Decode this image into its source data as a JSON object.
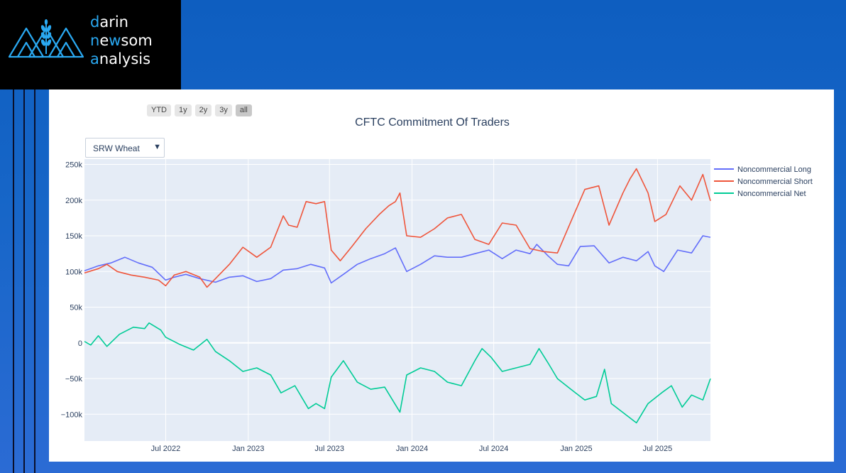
{
  "logo": {
    "line1_first": "d",
    "line1_rest": "arin",
    "line2_first": "n",
    "line2_mid": "e",
    "line2_hl": "w",
    "line2_rest": "som",
    "line3_first": "a",
    "line3_rest": "nalysis"
  },
  "range_buttons": [
    "YTD",
    "1y",
    "2y",
    "3y",
    "all"
  ],
  "active_range": "all",
  "dropdown": {
    "selected": "SRW Wheat"
  },
  "colors": {
    "long": "#636efa",
    "short": "#ef553b",
    "net": "#00cc96",
    "plot_bg": "#e5ecf6",
    "grid": "#ffffff",
    "accent": "#2aa9f2"
  },
  "chart_data": {
    "type": "line",
    "title": "CFTC Commitment Of Traders",
    "xlabel": "",
    "ylabel": "",
    "xlim": [
      "2022-01-01",
      "2025-10-27"
    ],
    "ylim": [
      -137500,
      257500
    ],
    "x_ticks": [
      {
        "label": "Jul 2022",
        "date": "2022-07-01"
      },
      {
        "label": "Jan 2023",
        "date": "2023-01-01"
      },
      {
        "label": "Jul 2023",
        "date": "2023-07-01"
      },
      {
        "label": "Jan 2024",
        "date": "2024-01-01"
      },
      {
        "label": "Jul 2024",
        "date": "2024-07-01"
      },
      {
        "label": "Jan 2025",
        "date": "2025-01-01"
      },
      {
        "label": "Jul 2025",
        "date": "2025-07-01"
      }
    ],
    "y_ticks": [
      {
        "label": "250k",
        "value": 250000
      },
      {
        "label": "200k",
        "value": 200000
      },
      {
        "label": "150k",
        "value": 150000
      },
      {
        "label": "100k",
        "value": 100000
      },
      {
        "label": "50k",
        "value": 50000
      },
      {
        "label": "0",
        "value": 0
      },
      {
        "label": "−50k",
        "value": -50000
      },
      {
        "label": "−100k",
        "value": -100000
      }
    ],
    "grid": true,
    "legend_position": "right",
    "series": [
      {
        "name": "Noncommercial Long",
        "color": "#636efa",
        "points": [
          [
            "2022-01-01",
            101000
          ],
          [
            "2022-02-01",
            108000
          ],
          [
            "2022-03-01",
            112000
          ],
          [
            "2022-04-01",
            120000
          ],
          [
            "2022-05-01",
            112000
          ],
          [
            "2022-06-01",
            106000
          ],
          [
            "2022-07-01",
            88000
          ],
          [
            "2022-07-20",
            92000
          ],
          [
            "2022-08-15",
            96000
          ],
          [
            "2022-09-15",
            90000
          ],
          [
            "2022-10-20",
            85000
          ],
          [
            "2022-11-20",
            92000
          ],
          [
            "2022-12-20",
            94000
          ],
          [
            "2023-01-20",
            86000
          ],
          [
            "2023-02-20",
            90000
          ],
          [
            "2023-03-20",
            102000
          ],
          [
            "2023-04-20",
            104000
          ],
          [
            "2023-05-20",
            110000
          ],
          [
            "2023-06-20",
            105000
          ],
          [
            "2023-07-05",
            84000
          ],
          [
            "2023-08-01",
            96000
          ],
          [
            "2023-09-01",
            110000
          ],
          [
            "2023-10-01",
            118000
          ],
          [
            "2023-11-01",
            125000
          ],
          [
            "2023-11-25",
            133000
          ],
          [
            "2023-12-20",
            100000
          ],
          [
            "2024-01-20",
            110000
          ],
          [
            "2024-02-20",
            122000
          ],
          [
            "2024-03-20",
            120000
          ],
          [
            "2024-04-20",
            120000
          ],
          [
            "2024-05-20",
            125000
          ],
          [
            "2024-06-20",
            130000
          ],
          [
            "2024-07-20",
            118000
          ],
          [
            "2024-08-20",
            130000
          ],
          [
            "2024-09-20",
            125000
          ],
          [
            "2024-10-05",
            138000
          ],
          [
            "2024-10-30",
            122000
          ],
          [
            "2024-11-20",
            110000
          ],
          [
            "2024-12-15",
            108000
          ],
          [
            "2025-01-10",
            135000
          ],
          [
            "2025-02-10",
            136000
          ],
          [
            "2025-03-15",
            112000
          ],
          [
            "2025-04-15",
            120000
          ],
          [
            "2025-05-15",
            115000
          ],
          [
            "2025-06-10",
            128000
          ],
          [
            "2025-06-25",
            108000
          ],
          [
            "2025-07-15",
            100000
          ],
          [
            "2025-08-15",
            130000
          ],
          [
            "2025-09-15",
            126000
          ],
          [
            "2025-10-10",
            150000
          ],
          [
            "2025-10-27",
            148000
          ]
        ]
      },
      {
        "name": "Noncommercial Short",
        "color": "#ef553b",
        "points": [
          [
            "2022-01-01",
            98000
          ],
          [
            "2022-02-01",
            104000
          ],
          [
            "2022-02-20",
            110000
          ],
          [
            "2022-03-15",
            100000
          ],
          [
            "2022-04-15",
            95000
          ],
          [
            "2022-05-15",
            92000
          ],
          [
            "2022-06-15",
            88000
          ],
          [
            "2022-07-01",
            80000
          ],
          [
            "2022-07-20",
            95000
          ],
          [
            "2022-08-15",
            100000
          ],
          [
            "2022-09-15",
            92000
          ],
          [
            "2022-10-01",
            78000
          ],
          [
            "2022-10-20",
            90000
          ],
          [
            "2022-11-20",
            110000
          ],
          [
            "2022-12-20",
            134000
          ],
          [
            "2023-01-20",
            120000
          ],
          [
            "2023-02-20",
            134000
          ],
          [
            "2023-03-20",
            178000
          ],
          [
            "2023-04-01",
            165000
          ],
          [
            "2023-04-20",
            162000
          ],
          [
            "2023-05-10",
            198000
          ],
          [
            "2023-06-01",
            195000
          ],
          [
            "2023-06-20",
            198000
          ],
          [
            "2023-07-05",
            130000
          ],
          [
            "2023-07-25",
            115000
          ],
          [
            "2023-08-20",
            135000
          ],
          [
            "2023-09-20",
            160000
          ],
          [
            "2023-10-20",
            180000
          ],
          [
            "2023-11-10",
            192000
          ],
          [
            "2023-11-25",
            198000
          ],
          [
            "2023-12-05",
            210000
          ],
          [
            "2023-12-20",
            150000
          ],
          [
            "2024-01-20",
            148000
          ],
          [
            "2024-02-20",
            160000
          ],
          [
            "2024-03-20",
            175000
          ],
          [
            "2024-04-20",
            180000
          ],
          [
            "2024-05-20",
            145000
          ],
          [
            "2024-06-20",
            138000
          ],
          [
            "2024-07-20",
            168000
          ],
          [
            "2024-08-20",
            165000
          ],
          [
            "2024-09-20",
            132000
          ],
          [
            "2024-10-20",
            128000
          ],
          [
            "2024-11-20",
            126000
          ],
          [
            "2024-12-20",
            170000
          ],
          [
            "2025-01-20",
            215000
          ],
          [
            "2025-02-20",
            220000
          ],
          [
            "2025-03-15",
            165000
          ],
          [
            "2025-04-15",
            210000
          ],
          [
            "2025-05-01",
            230000
          ],
          [
            "2025-05-15",
            244000
          ],
          [
            "2025-06-10",
            210000
          ],
          [
            "2025-06-25",
            170000
          ],
          [
            "2025-07-20",
            180000
          ],
          [
            "2025-08-20",
            220000
          ],
          [
            "2025-09-15",
            200000
          ],
          [
            "2025-10-10",
            236000
          ],
          [
            "2025-10-27",
            199000
          ]
        ]
      },
      {
        "name": "Noncommercial Net",
        "color": "#00cc96",
        "points": [
          [
            "2022-01-01",
            2000
          ],
          [
            "2022-01-15",
            -3000
          ],
          [
            "2022-02-01",
            10000
          ],
          [
            "2022-02-20",
            -5000
          ],
          [
            "2022-03-20",
            12000
          ],
          [
            "2022-04-20",
            22000
          ],
          [
            "2022-05-15",
            20000
          ],
          [
            "2022-05-25",
            28000
          ],
          [
            "2022-06-20",
            18000
          ],
          [
            "2022-07-01",
            8000
          ],
          [
            "2022-08-01",
            -2000
          ],
          [
            "2022-09-01",
            -10000
          ],
          [
            "2022-10-01",
            5000
          ],
          [
            "2022-10-20",
            -12000
          ],
          [
            "2022-11-20",
            -25000
          ],
          [
            "2022-12-20",
            -40000
          ],
          [
            "2023-01-20",
            -35000
          ],
          [
            "2023-02-20",
            -45000
          ],
          [
            "2023-03-15",
            -70000
          ],
          [
            "2023-04-15",
            -60000
          ],
          [
            "2023-05-15",
            -92000
          ],
          [
            "2023-06-01",
            -85000
          ],
          [
            "2023-06-20",
            -92000
          ],
          [
            "2023-07-05",
            -48000
          ],
          [
            "2023-08-01",
            -25000
          ],
          [
            "2023-09-01",
            -55000
          ],
          [
            "2023-10-01",
            -65000
          ],
          [
            "2023-11-01",
            -62000
          ],
          [
            "2023-12-05",
            -97000
          ],
          [
            "2023-12-20",
            -45000
          ],
          [
            "2024-01-20",
            -35000
          ],
          [
            "2024-02-20",
            -40000
          ],
          [
            "2024-03-20",
            -55000
          ],
          [
            "2024-04-20",
            -60000
          ],
          [
            "2024-05-20",
            -25000
          ],
          [
            "2024-06-05",
            -8000
          ],
          [
            "2024-06-25",
            -20000
          ],
          [
            "2024-07-20",
            -40000
          ],
          [
            "2024-08-20",
            -35000
          ],
          [
            "2024-09-20",
            -30000
          ],
          [
            "2024-10-10",
            -8000
          ],
          [
            "2024-11-01",
            -30000
          ],
          [
            "2024-11-20",
            -50000
          ],
          [
            "2024-12-20",
            -65000
          ],
          [
            "2025-01-20",
            -80000
          ],
          [
            "2025-02-15",
            -75000
          ],
          [
            "2025-03-05",
            -37000
          ],
          [
            "2025-03-20",
            -85000
          ],
          [
            "2025-04-20",
            -100000
          ],
          [
            "2025-05-15",
            -112000
          ],
          [
            "2025-06-10",
            -85000
          ],
          [
            "2025-07-10",
            -70000
          ],
          [
            "2025-08-01",
            -60000
          ],
          [
            "2025-08-25",
            -90000
          ],
          [
            "2025-09-15",
            -73000
          ],
          [
            "2025-10-10",
            -80000
          ],
          [
            "2025-10-27",
            -50000
          ]
        ]
      }
    ]
  }
}
